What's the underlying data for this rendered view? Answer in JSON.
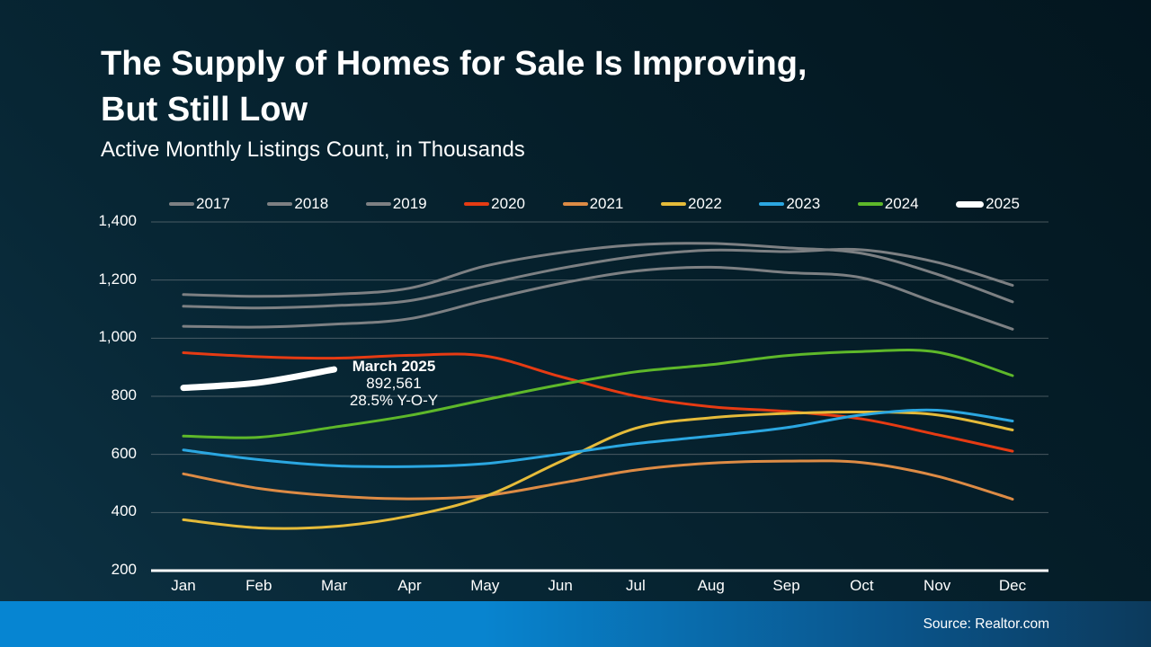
{
  "slide": {
    "title_line1": "The Supply of Homes for Sale Is Improving,",
    "title_line2": "But Still Low",
    "subtitle": "Active Monthly Listings Count, in Thousands",
    "source": "Source: Realtor.com"
  },
  "colors": {
    "background_top_right": "#03161f",
    "background_bottom_left": "#0d3244",
    "footer_left": "#0685d2",
    "footer_right": "#0c3a5c",
    "grid": "#8b9196",
    "axis": "#ffffff",
    "text": "#ffffff"
  },
  "chart_data": {
    "type": "line",
    "title": "Active Monthly Listings Count, in Thousands",
    "xlabel": "",
    "ylabel": "",
    "x": [
      "Jan",
      "Feb",
      "Mar",
      "Apr",
      "May",
      "Jun",
      "Jul",
      "Aug",
      "Sep",
      "Oct",
      "Nov",
      "Dec"
    ],
    "ylim": [
      200,
      1400
    ],
    "grid": true,
    "legend_position": "top",
    "y_ticks": [
      {
        "label": "1,400",
        "value": 1400
      },
      {
        "label": "1,200",
        "value": 1200
      },
      {
        "label": "1,000",
        "value": 1000
      },
      {
        "label": "800",
        "value": 800
      },
      {
        "label": "600",
        "value": 600
      },
      {
        "label": "400",
        "value": 400
      },
      {
        "label": "200",
        "value": 200
      }
    ],
    "series": [
      {
        "name": "2017",
        "color": "#7d8083",
        "width": 3,
        "values": [
          1150,
          1144,
          1151,
          1172,
          1248,
          1294,
          1321,
          1326,
          1311,
          1292,
          1220,
          1125
        ]
      },
      {
        "name": "2018",
        "color": "#7d8083",
        "width": 3,
        "values": [
          1110,
          1104,
          1112,
          1129,
          1186,
          1240,
          1282,
          1303,
          1298,
          1304,
          1261,
          1182
        ]
      },
      {
        "name": "2019",
        "color": "#7d8083",
        "width": 3,
        "values": [
          1041,
          1038,
          1048,
          1067,
          1130,
          1188,
          1231,
          1244,
          1226,
          1208,
          1121,
          1031
        ]
      },
      {
        "name": "2020",
        "color": "#e63b13",
        "width": 3,
        "values": [
          950,
          936,
          931,
          941,
          939,
          868,
          801,
          764,
          748,
          722,
          668,
          611
        ]
      },
      {
        "name": "2021",
        "color": "#dd8b45",
        "width": 3,
        "values": [
          533,
          483,
          457,
          447,
          458,
          501,
          546,
          570,
          577,
          572,
          525,
          446
        ]
      },
      {
        "name": "2022",
        "color": "#e5bb3a",
        "width": 3,
        "values": [
          375,
          347,
          352,
          388,
          455,
          575,
          690,
          726,
          741,
          746,
          736,
          684
        ]
      },
      {
        "name": "2023",
        "color": "#2ba7e1",
        "width": 3,
        "values": [
          615,
          582,
          561,
          558,
          568,
          601,
          637,
          663,
          692,
          736,
          752,
          715
        ]
      },
      {
        "name": "2024",
        "color": "#5eb82a",
        "width": 3,
        "values": [
          663,
          659,
          694,
          734,
          788,
          840,
          884,
          909,
          940,
          954,
          952,
          871
        ]
      },
      {
        "name": "2025",
        "color": "#ffffff",
        "width": 7,
        "values": [
          829,
          847,
          892.561
        ]
      }
    ],
    "annotation": {
      "line1": "March 2025",
      "line2": "892,561",
      "line3": "28.5% Y-O-Y"
    }
  }
}
